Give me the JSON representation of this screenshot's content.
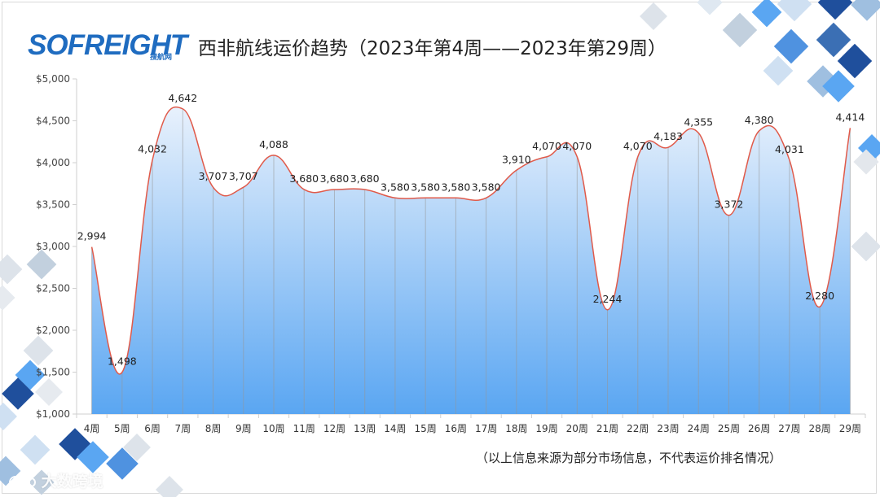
{
  "header": {
    "logo_text": "SOFREIGHT",
    "logo_sub": "搜航网",
    "title": "西非航线运价趋势（2023年第4周——2023年第29周）"
  },
  "footer": {
    "note": "（以上信息来源为部分市场信息，不代表运价排名情况）",
    "watermark": "大数跨境"
  },
  "colors": {
    "line": "#e05a4a",
    "area_top": "#e8f1fc",
    "area_bottom": "#5aa6f2",
    "axis": "#cfcfcf",
    "deco_dark": "#1f4f9c",
    "deco_mid": "#4f92e0",
    "deco_light": "#cfe0f2"
  },
  "icons": {
    "watermark_icon": "link-loop-icon"
  },
  "chart_data": {
    "type": "area",
    "title": "西非航线运价趋势（2023年第4周——2023年第29周）",
    "categories": [
      "4周",
      "5周",
      "6周",
      "7周",
      "8周",
      "9周",
      "10周",
      "11周",
      "12周",
      "13周",
      "14周",
      "15周",
      "16周",
      "17周",
      "18周",
      "19周",
      "20周",
      "21周",
      "22周",
      "23周",
      "24周",
      "25周",
      "26周",
      "27周",
      "28周",
      "29周"
    ],
    "values": [
      2994,
      1498,
      4032,
      4642,
      3707,
      3707,
      4088,
      3680,
      3680,
      3680,
      3580,
      3580,
      3580,
      3580,
      3910,
      4070,
      4070,
      2244,
      4070,
      4183,
      4355,
      3372,
      4380,
      4031,
      2280,
      4414
    ],
    "data_labels": [
      "2,994",
      "1,498",
      "4,032",
      "4,642",
      "3,707",
      "3,707",
      "4,088",
      "3,680",
      "3,680",
      "3,680",
      "3,580",
      "3,580",
      "3,580",
      "3,580",
      "3,910",
      "4,070",
      "4,070",
      "2,244",
      "4,070",
      "4,183",
      "4,355",
      "3,372",
      "4,380",
      "4,031",
      "2,280",
      "4,414"
    ],
    "ylim": [
      1000,
      5000
    ],
    "yticks": [
      1000,
      1500,
      2000,
      2500,
      3000,
      3500,
      4000,
      4500,
      5000
    ],
    "ytick_labels": [
      "$1,000",
      "$1,500",
      "$2,000",
      "$2,500",
      "$3,000",
      "$3,500",
      "$4,000",
      "$4,500",
      "$5,000"
    ],
    "grid": false,
    "legend": "none"
  }
}
